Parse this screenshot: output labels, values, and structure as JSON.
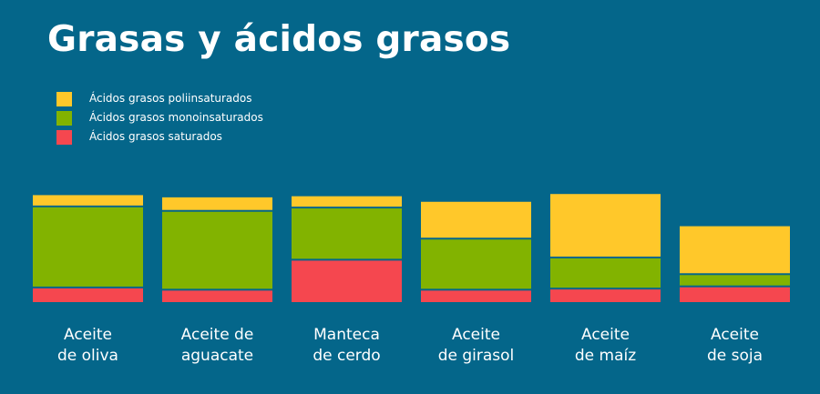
{
  "title": "Grasas y ácidos grasos",
  "chart_data": {
    "type": "bar",
    "stacked": true,
    "title": "Grasas y ácidos grasos",
    "xlabel": "",
    "ylabel": "",
    "categories": [
      [
        "Aceite",
        "de oliva"
      ],
      [
        "Aceite de",
        "aguacate"
      ],
      [
        "Manteca",
        "de cerdo"
      ],
      [
        "Aceite",
        "de girasol"
      ],
      [
        "Aceite",
        "de maíz"
      ],
      [
        "Aceite",
        "de soja"
      ]
    ],
    "series": [
      {
        "name": "Ácidos grasos saturados",
        "color": "#f5474f",
        "values": [
          14,
          12,
          39,
          12,
          13,
          15
        ]
      },
      {
        "name": "Ácidos grasos monoinsaturados",
        "color": "#82b300",
        "values": [
          73,
          71,
          47,
          46,
          28,
          11
        ]
      },
      {
        "name": "Ácidos grasos poliinsaturados",
        "color": "#ffc82a",
        "values": [
          11,
          13,
          11,
          34,
          58,
          44
        ]
      }
    ],
    "legend": "top-left",
    "legend_order": [
      "Ácidos grasos poliinsaturados",
      "Ácidos grasos monoinsaturados",
      "Ácidos grasos saturados"
    ],
    "ylim": [
      0,
      100
    ],
    "grid": false
  }
}
